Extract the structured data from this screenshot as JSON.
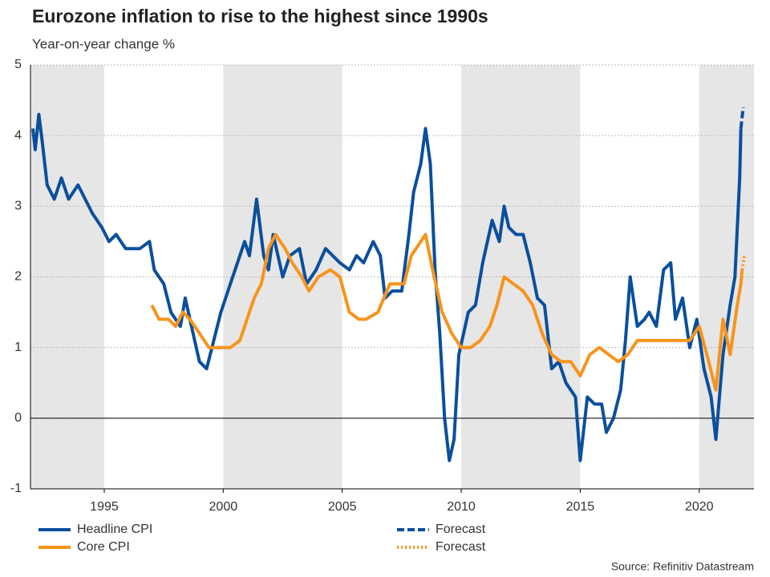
{
  "chart_data": {
    "type": "line",
    "title": "Eurozone inflation to rise to the highest since 1990s",
    "subtitle": "Year-on-year change %",
    "source": "Source: Refinitiv Datastream",
    "xlim": [
      1991.9,
      2022.3
    ],
    "xticks": [
      1995,
      2000,
      2005,
      2010,
      2015,
      2020
    ],
    "ylim": [
      -1,
      5
    ],
    "yticks": [
      -1,
      0,
      1,
      2,
      3,
      4,
      5
    ],
    "grid": true,
    "series": [
      {
        "name": "Headline CPI",
        "color": "#0a4f9c",
        "dash": "solid",
        "x": [
          1992.0,
          1992.1,
          1992.25,
          1992.4,
          1992.6,
          1992.9,
          1993.2,
          1993.5,
          1993.9,
          1994.2,
          1994.5,
          1994.9,
          1995.2,
          1995.5,
          1995.9,
          1996.5,
          1996.9,
          1997.1,
          1997.5,
          1997.8,
          1998.2,
          1998.4,
          1998.8,
          1999.0,
          1999.3,
          1999.6,
          1999.9,
          2000.3,
          2000.6,
          2000.9,
          2001.1,
          2001.4,
          2001.7,
          2001.9,
          2002.1,
          2002.5,
          2002.8,
          2003.2,
          2003.5,
          2003.9,
          2004.3,
          2004.6,
          2004.9,
          2005.3,
          2005.6,
          2005.9,
          2006.3,
          2006.6,
          2006.8,
          2007.1,
          2007.5,
          2007.8,
          2008.0,
          2008.3,
          2008.5,
          2008.7,
          2008.9,
          2009.1,
          2009.3,
          2009.5,
          2009.7,
          2009.9,
          2010.3,
          2010.6,
          2010.9,
          2011.3,
          2011.6,
          2011.8,
          2012.0,
          2012.3,
          2012.6,
          2012.9,
          2013.2,
          2013.5,
          2013.8,
          2014.1,
          2014.4,
          2014.8,
          2015.0,
          2015.3,
          2015.6,
          2015.9,
          2016.1,
          2016.4,
          2016.7,
          2016.9,
          2017.1,
          2017.4,
          2017.7,
          2017.9,
          2018.2,
          2018.5,
          2018.8,
          2019.0,
          2019.3,
          2019.6,
          2019.9,
          2020.2,
          2020.5,
          2020.7,
          2021.0,
          2021.3,
          2021.5,
          2021.7,
          2021.75
        ],
        "values": [
          4.1,
          3.8,
          4.3,
          3.9,
          3.3,
          3.1,
          3.4,
          3.1,
          3.3,
          3.1,
          2.9,
          2.7,
          2.5,
          2.6,
          2.4,
          2.4,
          2.5,
          2.1,
          1.9,
          1.5,
          1.3,
          1.7,
          1.1,
          0.8,
          0.7,
          1.1,
          1.5,
          1.9,
          2.2,
          2.5,
          2.3,
          3.1,
          2.3,
          2.1,
          2.6,
          2.0,
          2.3,
          2.4,
          1.9,
          2.1,
          2.4,
          2.3,
          2.2,
          2.1,
          2.3,
          2.2,
          2.5,
          2.3,
          1.7,
          1.8,
          1.8,
          2.6,
          3.2,
          3.6,
          4.1,
          3.6,
          2.1,
          1.2,
          0.0,
          -0.6,
          -0.3,
          0.9,
          1.5,
          1.6,
          2.2,
          2.8,
          2.5,
          3.0,
          2.7,
          2.6,
          2.6,
          2.2,
          1.7,
          1.6,
          0.7,
          0.8,
          0.5,
          0.3,
          -0.6,
          0.3,
          0.2,
          0.2,
          -0.2,
          0.0,
          0.4,
          1.1,
          2.0,
          1.3,
          1.4,
          1.5,
          1.3,
          2.1,
          2.2,
          1.4,
          1.7,
          1.0,
          1.4,
          0.7,
          0.3,
          -0.3,
          0.9,
          1.6,
          2.0,
          3.4,
          4.1
        ]
      },
      {
        "name": "Core CPI",
        "color": "#f7941d",
        "dash": "solid",
        "x": [
          1997.0,
          1997.3,
          1997.7,
          1998.0,
          1998.3,
          1998.6,
          1999.0,
          1999.4,
          1999.8,
          2000.3,
          2000.7,
          2001.0,
          2001.3,
          2001.6,
          2001.9,
          2002.2,
          2002.6,
          2002.9,
          2003.3,
          2003.6,
          2004.0,
          2004.5,
          2004.9,
          2005.3,
          2005.7,
          2006.0,
          2006.5,
          2007.0,
          2007.6,
          2007.9,
          2008.3,
          2008.5,
          2008.8,
          2009.2,
          2009.6,
          2010.0,
          2010.4,
          2010.8,
          2011.2,
          2011.5,
          2011.8,
          2012.2,
          2012.6,
          2013.0,
          2013.4,
          2013.8,
          2014.2,
          2014.6,
          2015.0,
          2015.4,
          2015.8,
          2016.2,
          2016.6,
          2017.0,
          2017.4,
          2017.8,
          2018.3,
          2018.7,
          2019.2,
          2019.6,
          2020.0,
          2020.4,
          2020.7,
          2021.0,
          2021.3,
          2021.6,
          2021.75,
          2021.8
        ],
        "values": [
          1.6,
          1.4,
          1.4,
          1.3,
          1.5,
          1.4,
          1.2,
          1.0,
          1.0,
          1.0,
          1.1,
          1.4,
          1.7,
          1.9,
          2.4,
          2.6,
          2.4,
          2.2,
          2.0,
          1.8,
          2.0,
          2.1,
          2.0,
          1.5,
          1.4,
          1.4,
          1.5,
          1.9,
          1.9,
          2.3,
          2.5,
          2.6,
          2.1,
          1.5,
          1.2,
          1.0,
          1.0,
          1.1,
          1.3,
          1.6,
          2.0,
          1.9,
          1.8,
          1.6,
          1.2,
          0.9,
          0.8,
          0.8,
          0.6,
          0.9,
          1.0,
          0.9,
          0.8,
          0.9,
          1.1,
          1.1,
          1.1,
          1.1,
          1.1,
          1.1,
          1.3,
          0.8,
          0.4,
          1.4,
          0.9,
          1.6,
          1.9,
          2.1
        ]
      },
      {
        "name": "Forecast",
        "color": "#0a4f9c",
        "dash": "dashed",
        "x": [
          2021.75,
          2021.85
        ],
        "values": [
          4.1,
          4.4
        ]
      },
      {
        "name": "Forecast",
        "color": "#f7941d",
        "dash": "dotted",
        "x": [
          2021.8,
          2021.9
        ],
        "values": [
          2.1,
          2.3
        ]
      }
    ]
  }
}
